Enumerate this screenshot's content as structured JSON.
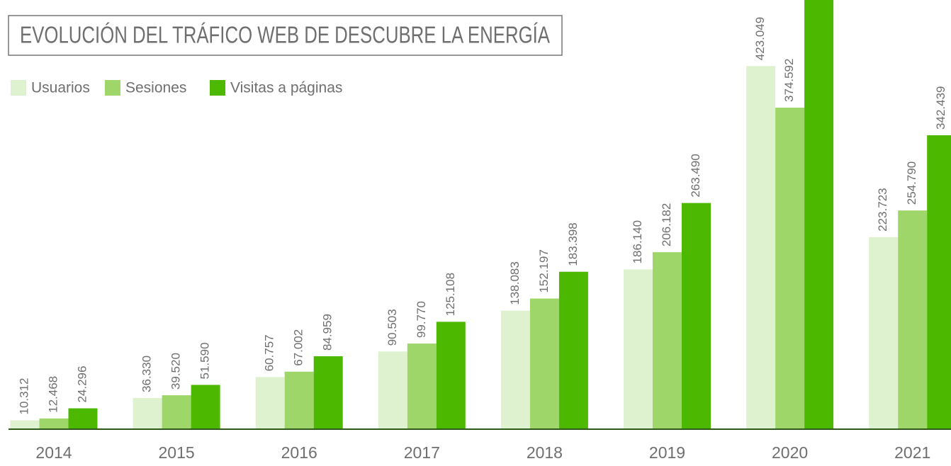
{
  "chart_data": {
    "type": "bar",
    "title": "EVOLUCIÓN DEL TRÁFICO WEB DE DESCUBRE LA ENERGÍA",
    "categories": [
      "2014",
      "2015",
      "2016",
      "2017",
      "2018",
      "2019",
      "2020",
      "2021"
    ],
    "series": [
      {
        "name": "Usuarios",
        "color": "#dff2d0",
        "values": [
          10312,
          36330,
          60757,
          90503,
          138083,
          186140,
          423049,
          223723
        ],
        "value_labels": [
          "10.312",
          "36.330",
          "60.757",
          "90.503",
          "138.083",
          "186.140",
          "423.049",
          "223.723"
        ]
      },
      {
        "name": "Sesiones",
        "color": "#9fd66a",
        "values": [
          12468,
          39520,
          67002,
          99770,
          152197,
          206182,
          374592,
          254790
        ],
        "value_labels": [
          "12.468",
          "39.520",
          "67.002",
          "99.770",
          "152.197",
          "206.182",
          "374.592",
          "254.790"
        ]
      },
      {
        "name": "Visitas a páginas",
        "color": "#4cb800",
        "values": [
          24296,
          51590,
          84959,
          125108,
          183398,
          263490,
          520000,
          342439
        ],
        "value_labels": [
          "24.296",
          "51.590",
          "84.959",
          "125.108",
          "183.398",
          "263.490",
          null,
          "342.439"
        ]
      }
    ],
    "ylim": [
      0,
      500000
    ]
  }
}
